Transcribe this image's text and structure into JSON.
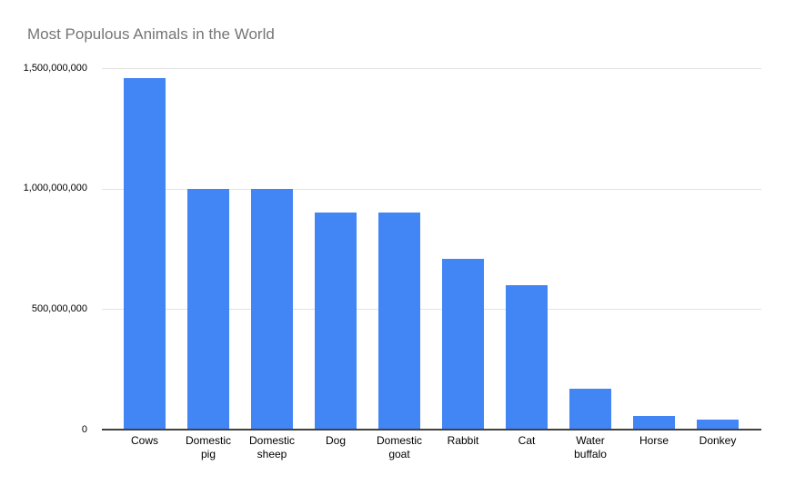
{
  "page": {
    "background": "#ffffff"
  },
  "chart_data": {
    "type": "bar",
    "title": "Most Populous Animals in the World",
    "categories": [
      "Cows",
      "Domestic pig",
      "Domestic sheep",
      "Dog",
      "Domestic goat",
      "Rabbit",
      "Cat",
      "Water buffalo",
      "Horse",
      "Donkey"
    ],
    "values": [
      1460000000,
      1000000000,
      1000000000,
      900000000,
      900000000,
      709000000,
      600000000,
      170000000,
      58000000,
      40000000
    ],
    "xlabel": "",
    "ylabel": "",
    "ylim": [
      0,
      1500000000
    ],
    "yticks": [
      0,
      500000000,
      1000000000,
      1500000000
    ],
    "ytick_labels": [
      "0",
      "500,000,000",
      "1,000,000,000",
      "1,500,000,000"
    ],
    "grid": true,
    "legend": "none",
    "colors": {
      "bar": "#4285f4",
      "title_text": "#757575",
      "axis_text": "#000000",
      "gridline": "#e3e3e3",
      "baseline": "#424242",
      "background": "#ffffff"
    }
  }
}
